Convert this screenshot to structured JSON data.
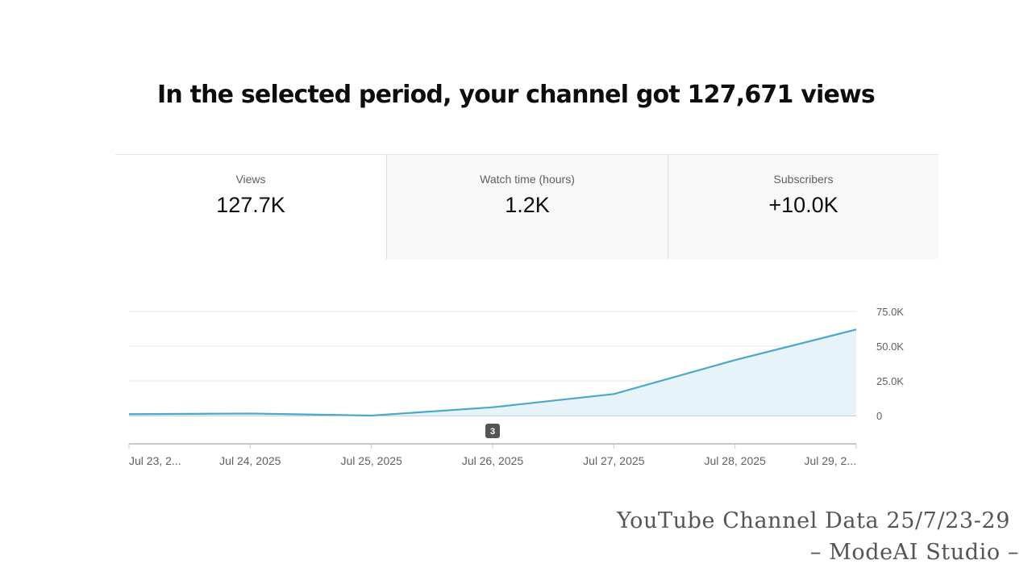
{
  "headline": "In the selected period, your channel got 127,671 views",
  "metrics": [
    {
      "label": "Views",
      "value": "127.7K"
    },
    {
      "label": "Watch time (hours)",
      "value": "1.2K"
    },
    {
      "label": "Subscribers",
      "value": "+10.0K"
    }
  ],
  "chart_data": {
    "type": "area",
    "title": "",
    "xlabel": "",
    "ylabel": "",
    "x": [
      "Jul 23, 2025",
      "Jul 24, 2025",
      "Jul 25, 2025",
      "Jul 26, 2025",
      "Jul 27, 2025",
      "Jul 28, 2025",
      "Jul 29, 2025"
    ],
    "x_tick_labels": [
      "Jul 23, 2...",
      "Jul 24, 2025",
      "Jul 25, 2025",
      "Jul 26, 2025",
      "Jul 27, 2025",
      "Jul 28, 2025",
      "Jul 29, 2..."
    ],
    "series": [
      {
        "values": [
          1000,
          1500,
          0,
          6000,
          15500,
          40000,
          62000
        ]
      }
    ],
    "ylim": [
      0,
      75000
    ],
    "y_ticks": [
      0,
      25000,
      50000,
      75000
    ],
    "y_tick_labels": [
      "0",
      "25.0K",
      "50.0K",
      "75.0K"
    ],
    "y_axis_side": "right",
    "grid": true,
    "marker_badge": {
      "label": "3",
      "x": "Jul 26, 2025"
    },
    "line_color": "#4ba8c8",
    "fill_color": "#e6f4fa"
  },
  "footer": {
    "line1": "YouTube Channel Data 25/7/23-29",
    "line2": "– ModeAI Studio –"
  }
}
